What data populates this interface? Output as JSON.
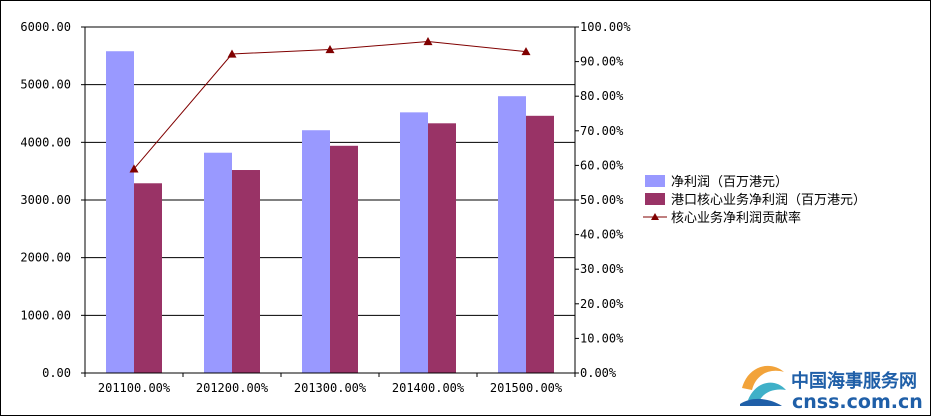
{
  "chart_data": {
    "type": "bar",
    "title": "",
    "xlabel": "",
    "ylabel": "",
    "categories": [
      "201100.00%",
      "201200.00%",
      "201300.00%",
      "201400.00%",
      "201500.00%"
    ],
    "series": [
      {
        "name": "净利润（百万港元）",
        "type": "bar",
        "axis": "left",
        "color": "#9999ff",
        "values": [
          5580,
          3820,
          4210,
          4520,
          4800
        ]
      },
      {
        "name": "港口核心业务净利润（百万港元）",
        "type": "bar",
        "axis": "left",
        "color": "#993366",
        "values": [
          3290,
          3520,
          3940,
          4330,
          4460
        ]
      },
      {
        "name": "核心业务净利润贡献率",
        "type": "line",
        "axis": "right",
        "color": "#800000",
        "marker": "triangle",
        "values": [
          59.0,
          92.2,
          93.5,
          95.8,
          92.9
        ]
      }
    ],
    "ylim": [
      0,
      6000
    ],
    "y_ticks": [
      "0.00",
      "1000.00",
      "2000.00",
      "3000.00",
      "4000.00",
      "5000.00",
      "6000.00"
    ],
    "y2lim": [
      0,
      100
    ],
    "y2_ticks": [
      "0.00%",
      "10.00%",
      "20.00%",
      "30.00%",
      "40.00%",
      "50.00%",
      "60.00%",
      "70.00%",
      "80.00%",
      "90.00%",
      "100.00%"
    ],
    "grid": "horizontal",
    "legend_position": "right"
  },
  "watermark": {
    "text_cn": "中国海事服务网",
    "text_en": "cnss.com.cn",
    "colors": {
      "blue": "#1f5fa8",
      "orange": "#f2a33a",
      "teal": "#3fb0c8"
    }
  }
}
